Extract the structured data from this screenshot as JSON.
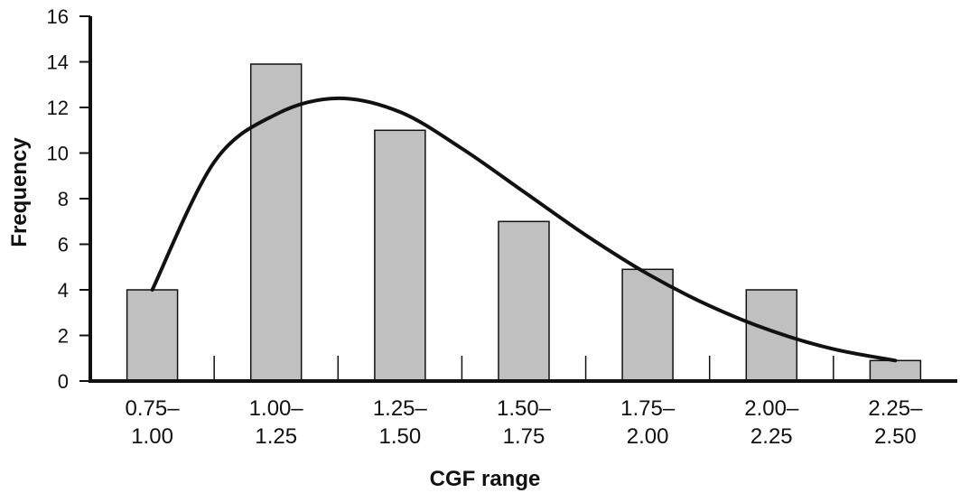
{
  "chart_data": {
    "type": "bar",
    "title": "",
    "xlabel": "CGF range",
    "ylabel": "Frequency",
    "categories": [
      [
        "0.75–",
        "1.00"
      ],
      [
        "1.00–",
        "1.25"
      ],
      [
        "1.25–",
        "1.50"
      ],
      [
        "1.50–",
        "1.75"
      ],
      [
        "1.75–",
        "2.00"
      ],
      [
        "2.00–",
        "2.25"
      ],
      [
        "2.25–",
        "2.50"
      ]
    ],
    "values": [
      4,
      13.9,
      11,
      7,
      4.9,
      4,
      0.9
    ],
    "ylim": [
      0,
      16
    ],
    "yticks": [
      0,
      2,
      4,
      6,
      8,
      10,
      12,
      14,
      16
    ],
    "grid": false,
    "legend": "none",
    "bar_color": "#c0c0c0",
    "bar_edge_color": "#111111",
    "curve": {
      "type": "smooth-fit",
      "x": [
        0.0,
        0.5,
        1.0,
        1.5,
        2.0,
        2.5,
        3.0,
        3.5,
        4.0,
        4.5,
        5.0,
        5.5,
        6.0
      ],
      "y": [
        4.0,
        9.6,
        11.7,
        12.4,
        11.8,
        10.2,
        8.3,
        6.4,
        4.7,
        3.3,
        2.2,
        1.4,
        0.9
      ]
    }
  }
}
